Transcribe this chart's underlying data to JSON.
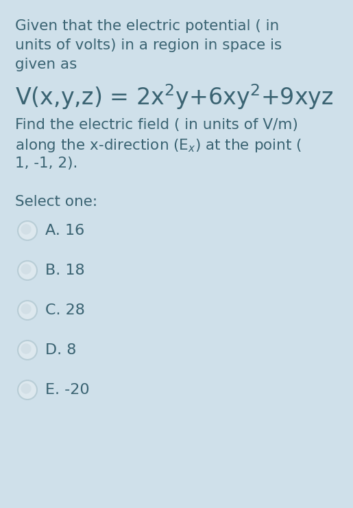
{
  "background_color": "#cfe0ea",
  "text_color": "#3a6372",
  "intro_text_lines": [
    "Given that the electric potential ( in",
    "units of volts) in a region in space is",
    "given as"
  ],
  "body_text_lines": [
    "Find the electric field ( in units of V/m)",
    "along the x-direction (Eₓ) at the point (",
    "1, -1, 2)."
  ],
  "select_label": "Select one:",
  "options": [
    "A. 16",
    "B. 18",
    "C. 28",
    "D. 8",
    "E. -20"
  ],
  "intro_fontsize": 15.5,
  "formula_fontsize": 24,
  "body_fontsize": 15.5,
  "select_fontsize": 15.5,
  "option_fontsize": 16,
  "circle_fill_color": "#dde8ee",
  "circle_edge_color": "#b8cdd6",
  "circle_highlight": "#f0f4f6"
}
